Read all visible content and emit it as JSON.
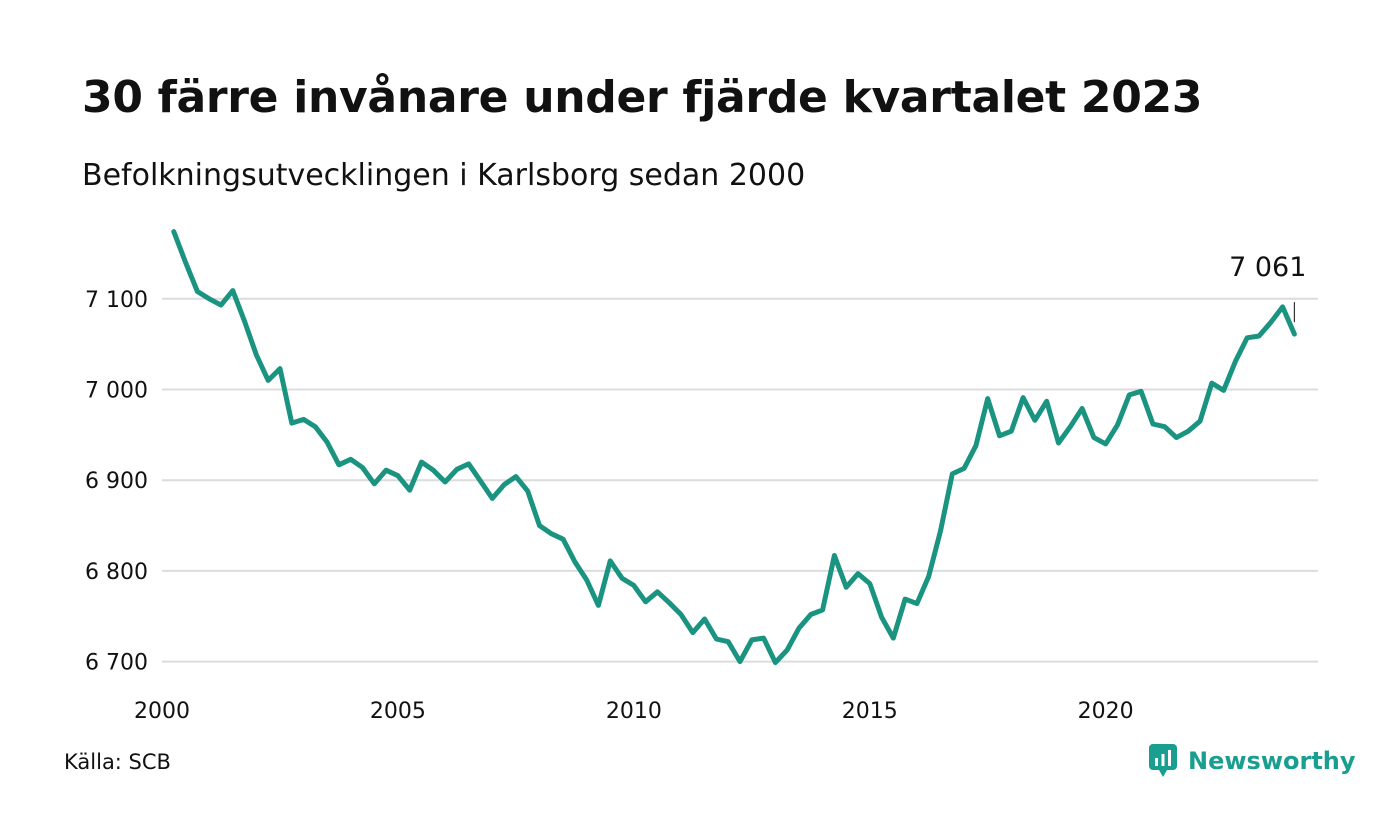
{
  "header": {
    "title": "30 färre invånare under fjärde kvartalet 2023",
    "subtitle": "Befolkningsutvecklingen i Karlsborg sedan 2000"
  },
  "footer": {
    "source": "Källa: SCB",
    "brand": "Newsworthy",
    "brand_color": "#1a9e8f"
  },
  "chart_data": {
    "type": "line",
    "title": "30 färre invånare under fjärde kvartalet 2023",
    "subtitle": "Befolkningsutvecklingen i Karlsborg sedan 2000",
    "xlabel": "",
    "ylabel": "",
    "xlim": [
      2000,
      2024.5
    ],
    "ylim": [
      6693,
      7178
    ],
    "x_ticks": [
      2000,
      2005,
      2010,
      2015,
      2020
    ],
    "y_ticks": [
      6700,
      6800,
      6900,
      7000,
      7100
    ],
    "y_tick_labels": [
      "6 700",
      "6 800",
      "6 900",
      "7 000",
      "7 100"
    ],
    "grid": true,
    "line_color": "#1a9480",
    "last_label": "7 061",
    "series": [
      {
        "x": [
          2000.25,
          2000.5,
          2000.75,
          2001.0,
          2001.25,
          2001.5,
          2001.75,
          2002.0,
          2002.25,
          2002.5,
          2002.75,
          2003.0,
          2003.25,
          2003.5,
          2003.75,
          2004.0,
          2004.25,
          2004.5,
          2004.75,
          2005.0,
          2005.25,
          2005.5,
          2005.75,
          2006.0,
          2006.25,
          2006.5,
          2006.75,
          2007.0,
          2007.25,
          2007.5,
          2007.75,
          2008.0,
          2008.25,
          2008.5,
          2008.75,
          2009.0,
          2009.25,
          2009.5,
          2009.75,
          2010.0,
          2010.25,
          2010.5,
          2010.75,
          2011.0,
          2011.25,
          2011.5,
          2011.75,
          2012.0,
          2012.25,
          2012.5,
          2012.75,
          2013.0,
          2013.25,
          2013.5,
          2013.75,
          2014.0,
          2014.25,
          2014.5,
          2014.75,
          2015.0,
          2015.25,
          2015.5,
          2015.75,
          2016.0,
          2016.25,
          2016.5,
          2016.75,
          2017.0,
          2017.25,
          2017.5,
          2017.75,
          2018.0,
          2018.25,
          2018.5,
          2018.75,
          2019.0,
          2019.25,
          2019.5,
          2019.75,
          2020.0,
          2020.25,
          2020.5,
          2020.75,
          2021.0,
          2021.25,
          2021.5,
          2021.75,
          2022.0,
          2022.25,
          2022.5,
          2022.75,
          2023.0,
          2023.25,
          2023.5,
          2023.75,
          2024.0
        ],
        "values": [
          7174,
          7140,
          7108,
          7100,
          7093,
          7109,
          7075,
          7038,
          7010,
          7023,
          6963,
          6967,
          6959,
          6942,
          6917,
          6923,
          6914,
          6896,
          6911,
          6905,
          6889,
          6920,
          6911,
          6898,
          6912,
          6918,
          6899,
          6880,
          6895,
          6904,
          6888,
          6850,
          6841,
          6835,
          6810,
          6790,
          6762,
          6811,
          6792,
          6784,
          6766,
          6777,
          6765,
          6752,
          6732,
          6747,
          6725,
          6722,
          6700,
          6724,
          6726,
          6699,
          6713,
          6737,
          6752,
          6757,
          6817,
          6782,
          6797,
          6786,
          6749,
          6726,
          6769,
          6764,
          6794,
          6844,
          6907,
          6913,
          6938,
          6990,
          6949,
          6954,
          6991,
          6966,
          6987,
          6941,
          6959,
          6979,
          6947,
          6940,
          6961,
          6994,
          6998,
          6962,
          6959,
          6947,
          6954,
          6965,
          7007,
          6999,
          7031,
          7057,
          7059,
          7074,
          7091,
          7061
        ]
      }
    ]
  }
}
